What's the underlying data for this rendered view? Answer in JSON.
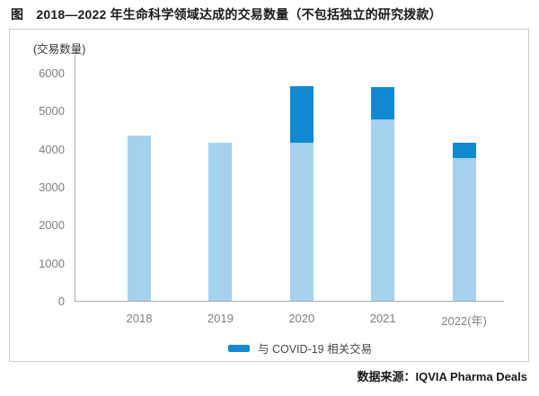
{
  "figure": {
    "title": "图　2018—2022 年生命科学领域达成的交易数量（不包括独立的研究拨款）",
    "source": "数据来源：IQVIA Pharma Deals"
  },
  "chart_data": {
    "type": "bar",
    "stacked": true,
    "title": "2018—2022 年生命科学领域达成的交易数量（不包括独立的研究拨款）",
    "ylabel": "(交易数量)",
    "categories": [
      "2018",
      "2019",
      "2020",
      "2021",
      "2022(年)"
    ],
    "series": [
      {
        "name": "base",
        "color": "#a5d1ee",
        "values": [
          4350,
          4150,
          4150,
          4775,
          3750
        ]
      },
      {
        "name": "covid19",
        "color": "#1089d1",
        "values": [
          0,
          0,
          1500,
          850,
          400
        ]
      }
    ],
    "totals": [
      4350,
      4150,
      5650,
      5625,
      4150
    ],
    "ylim": [
      0,
      6000
    ],
    "yticks": [
      0,
      1000,
      2000,
      3000,
      4000,
      5000,
      6000
    ],
    "grid": false,
    "legend": [
      {
        "label": "与 COVID-19 相关交易",
        "color": "#1089d1"
      }
    ],
    "legend_position": "bottom"
  }
}
